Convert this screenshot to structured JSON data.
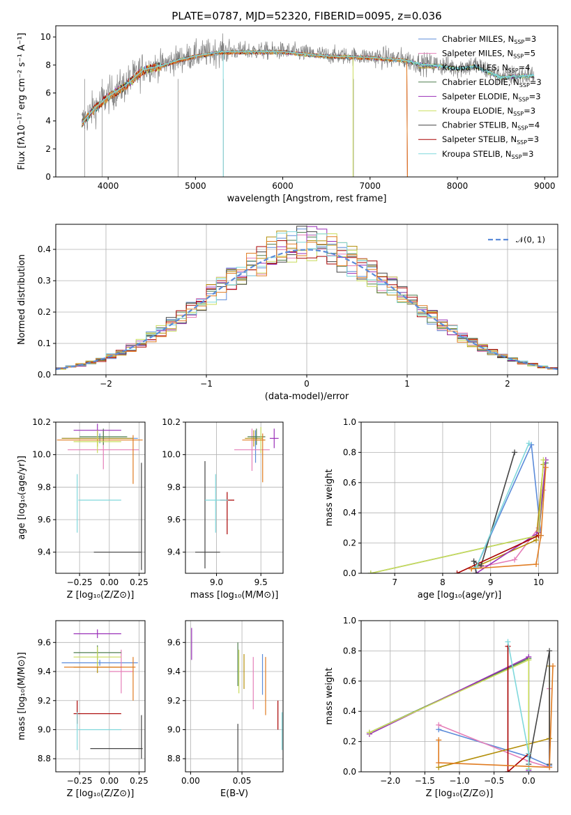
{
  "colors": {
    "Chabrier MILES": "#5b8bd9",
    "Salpeter MILES": "#e57fb8",
    "Kroupa MILES": "#b38f0a",
    "Chabrier ELODIE": "#4f7f4f",
    "Salpeter ELODIE": "#9a2fb8",
    "Kroupa ELODIE": "#c8dc5a",
    "Chabrier STELIB": "#444444",
    "Salpeter STELIB": "#a80000",
    "Kroupa STELIB": "#7fd8dc",
    "extra_orange": "#e07b20",
    "gray_data": "#808080",
    "normal_curve": "#5b8bd9"
  },
  "chart_data": [
    {
      "id": "spectrum",
      "type": "line",
      "title": "PLATE=0787, MJD=52320, FIBERID=0095, z=0.036",
      "xlabel": "wavelength [Angstrom, rest frame]",
      "ylabel": "Flux [fλ10⁻¹⁷ erg cm⁻² s⁻¹ A⁻¹]",
      "xlim": [
        3400,
        9150
      ],
      "ylim": [
        0,
        10.8
      ],
      "xticks": [
        "4000",
        "5000",
        "6000",
        "7000",
        "8000",
        "9000"
      ],
      "yticks": [
        "0",
        "2",
        "4",
        "6",
        "8",
        "10"
      ],
      "grid": false,
      "legend_position": "top-right",
      "legend": [
        {
          "name": "Chabrier MILES",
          "sub": "SSP",
          "count": "=3"
        },
        {
          "name": "Salpeter MILES",
          "sub": "SSP",
          "count": "=5"
        },
        {
          "name": "Kroupa MILES",
          "sub": "SSP",
          "count": "=4"
        },
        {
          "name": "Chabrier ELODIE",
          "sub": "SSP",
          "count": "=3"
        },
        {
          "name": "Salpeter ELODIE",
          "sub": "SSP",
          "count": "=3"
        },
        {
          "name": "Kroupa ELODIE",
          "sub": "SSP",
          "count": "=3"
        },
        {
          "name": "Chabrier STELIB",
          "sub": "SSP",
          "count": "=4"
        },
        {
          "name": "Salpeter STELIB",
          "sub": "SSP",
          "count": "=3"
        },
        {
          "name": "Kroupa STELIB",
          "sub": "SSP",
          "count": "=3"
        }
      ],
      "model_continuum": {
        "x": [
          3700,
          3850,
          4000,
          4200,
          4400,
          4600,
          4800,
          5000,
          5300,
          5600,
          6000,
          6500,
          7000,
          7400,
          7600,
          7800,
          8000,
          8200,
          8500,
          8800
        ],
        "y": [
          3.9,
          5.0,
          5.8,
          6.6,
          7.7,
          8.0,
          8.4,
          8.7,
          9.0,
          9.0,
          9.0,
          8.7,
          8.6,
          8.4,
          8.1,
          8.0,
          7.8,
          8.0,
          7.2,
          7.3
        ]
      }
    },
    {
      "id": "residuals",
      "type": "histogram",
      "xlabel": "(data-model)/error",
      "ylabel": "Normed distribution",
      "xlim": [
        -2.5,
        2.5
      ],
      "ylim": [
        0,
        0.48
      ],
      "xticks": [
        "−2",
        "−1",
        "0",
        "1",
        "2"
      ],
      "yticks": [
        "0.0",
        "0.1",
        "0.2",
        "0.3",
        "0.4"
      ],
      "grid": true,
      "legend_position": "top-right",
      "legend_label": "𝒩(0, 1)",
      "normal_curve": {
        "mean": 0,
        "sigma": 1
      }
    },
    {
      "id": "age_vs_Z",
      "type": "errorbar",
      "xlabel": "Z [log₁₀(Z/Z⊙)]",
      "ylabel": "age  [log₁₀(age/yr)]",
      "xlim": [
        -0.45,
        0.3
      ],
      "ylim": [
        9.27,
        10.2
      ],
      "xticks": [
        "−0.25",
        "0.00",
        "0.25"
      ],
      "yticks": [
        "9.4",
        "9.6",
        "9.8",
        "10.0",
        "10.2"
      ],
      "grid": true,
      "points": [
        {
          "model": "Chabrier MILES",
          "x": -0.08,
          "xerr": 0.32,
          "y": 10.1,
          "yerr": 0.03
        },
        {
          "model": "Salpeter MILES",
          "x": -0.05,
          "xerr": 0.3,
          "y": 10.03,
          "yerr": 0.12
        },
        {
          "model": "Kroupa MILES",
          "x": -0.1,
          "xerr": 0.3,
          "y": 10.1,
          "yerr": 0.05
        },
        {
          "model": "Chabrier ELODIE",
          "x": -0.05,
          "xerr": 0.2,
          "y": 10.11,
          "yerr": 0.05
        },
        {
          "model": "Salpeter ELODIE",
          "x": -0.1,
          "xerr": 0.2,
          "y": 10.15,
          "yerr": 0.04
        },
        {
          "model": "Kroupa ELODIE",
          "x": -0.1,
          "xerr": 0.2,
          "y": 10.08,
          "yerr": 0.07
        },
        {
          "model": "Chabrier STELIB",
          "x": 0.07,
          "xerr": 0.2,
          "y": 9.4,
          "yerr": 0.0
        },
        {
          "model": "Chabrier STELIB",
          "x": 0.27,
          "xerr": 0.0,
          "y": 9.62,
          "yerr": 0.33
        },
        {
          "model": "Kroupa STELIB",
          "x": -0.27,
          "xerr": 0.0,
          "y": 9.7,
          "yerr": 0.18
        },
        {
          "model": "Kroupa STELIB",
          "x": -0.08,
          "xerr": 0.18,
          "y": 9.72,
          "yerr": 0.0
        },
        {
          "model": "extra_orange",
          "x": -0.08,
          "xerr": 0.36,
          "y": 10.09,
          "yerr": 0.0
        },
        {
          "model": "extra_orange",
          "x": 0.2,
          "xerr": 0.0,
          "y": 9.97,
          "yerr": 0.15
        }
      ]
    },
    {
      "id": "age_vs_mass",
      "type": "errorbar",
      "xlabel": "mass [log₁₀(M/M⊙)]",
      "ylabel": "",
      "xlim": [
        8.65,
        9.75
      ],
      "ylim": [
        9.27,
        10.2
      ],
      "xticks": [
        "9.0",
        "9.5"
      ],
      "yticks": [
        "9.4",
        "9.6",
        "9.8",
        "10.0",
        "10.2"
      ],
      "grid": true,
      "points": [
        {
          "model": "Chabrier MILES",
          "x": 9.44,
          "xerr": 0.0,
          "y": 10.05,
          "yerr": 0.1
        },
        {
          "model": "Salpeter MILES",
          "x": 9.4,
          "xerr": 0.2,
          "y": 10.03,
          "yerr": 0.13
        },
        {
          "model": "Kroupa MILES",
          "x": 9.42,
          "xerr": 0.1,
          "y": 10.1,
          "yerr": 0.05
        },
        {
          "model": "Chabrier ELODIE",
          "x": 9.45,
          "xerr": 0.1,
          "y": 10.11,
          "yerr": 0.05
        },
        {
          "model": "Salpeter ELODIE",
          "x": 9.65,
          "xerr": 0.05,
          "y": 10.1,
          "yerr": 0.06
        },
        {
          "model": "Kroupa ELODIE",
          "x": 9.5,
          "xerr": 0.05,
          "y": 10.09,
          "yerr": 0.08
        },
        {
          "model": "Chabrier STELIB",
          "x": 8.9,
          "xerr": 0.14,
          "y": 9.4,
          "yerr": 0.0
        },
        {
          "model": "Chabrier STELIB",
          "x": 8.87,
          "xerr": 0.0,
          "y": 9.63,
          "yerr": 0.33
        },
        {
          "model": "Salpeter STELIB",
          "x": 9.12,
          "xerr": 0.08,
          "y": 9.72,
          "yerr": 0.0
        },
        {
          "model": "Salpeter STELIB",
          "x": 9.12,
          "xerr": 0.0,
          "y": 9.64,
          "yerr": 0.13
        },
        {
          "model": "Kroupa STELIB",
          "x": 8.99,
          "xerr": 0.0,
          "y": 9.7,
          "yerr": 0.18
        },
        {
          "model": "Kroupa STELIB",
          "x": 9.0,
          "xerr": 0.13,
          "y": 9.72,
          "yerr": 0.0
        },
        {
          "model": "extra_orange",
          "x": 9.42,
          "xerr": 0.13,
          "y": 10.09,
          "yerr": 0.0
        },
        {
          "model": "extra_orange",
          "x": 9.52,
          "xerr": 0.0,
          "y": 9.98,
          "yerr": 0.15
        }
      ]
    },
    {
      "id": "massweight_vs_age",
      "type": "line",
      "xlabel": "age  [log₁₀(age/yr)]",
      "ylabel": "mass weight",
      "xlim": [
        6.3,
        10.4
      ],
      "ylim": [
        0,
        1
      ],
      "xticks": [
        "7",
        "8",
        "9",
        "10"
      ],
      "yticks": [
        "0.0",
        "0.2",
        "0.4",
        "0.6",
        "0.8",
        "1.0"
      ],
      "grid": true,
      "series": [
        {
          "model": "Chabrier MILES",
          "points": [
            [
              10.05,
              0.25
            ],
            [
              9.85,
              0.85
            ],
            [
              8.7,
              0.04
            ]
          ]
        },
        {
          "model": "Salpeter MILES",
          "points": [
            [
              10.1,
              0.55
            ],
            [
              10.0,
              0.3
            ],
            [
              9.5,
              0.09
            ],
            [
              8.6,
              0.03
            ]
          ]
        },
        {
          "model": "Kroupa MILES",
          "points": [
            [
              10.1,
              0.72
            ],
            [
              9.95,
              0.22
            ],
            [
              8.6,
              0.03
            ]
          ]
        },
        {
          "model": "Chabrier ELODIE",
          "points": [
            [
              10.15,
              0.73
            ],
            [
              10.0,
              0.25
            ],
            [
              6.5,
              0.0
            ]
          ]
        },
        {
          "model": "Salpeter ELODIE",
          "points": [
            [
              10.15,
              0.75
            ],
            [
              10.0,
              0.27
            ],
            [
              8.7,
              0.0
            ]
          ]
        },
        {
          "model": "Kroupa ELODIE",
          "points": [
            [
              10.1,
              0.75
            ],
            [
              10.0,
              0.25
            ],
            [
              6.5,
              0.0
            ]
          ]
        },
        {
          "model": "Chabrier STELIB",
          "points": [
            [
              9.5,
              0.8
            ],
            [
              8.8,
              0.05
            ],
            [
              8.65,
              0.08
            ],
            [
              8.7,
              0.0
            ]
          ]
        },
        {
          "model": "Salpeter STELIB",
          "points": [
            [
              10.0,
              0.25
            ],
            [
              8.3,
              0.0
            ]
          ]
        },
        {
          "model": "Kroupa STELIB",
          "points": [
            [
              9.8,
              0.86
            ],
            [
              8.7,
              0.04
            ]
          ]
        },
        {
          "model": "extra_orange",
          "points": [
            [
              10.15,
              0.7
            ],
            [
              10.05,
              0.25
            ],
            [
              9.95,
              0.06
            ],
            [
              8.6,
              0.03
            ]
          ]
        }
      ]
    },
    {
      "id": "mass_vs_Z",
      "type": "errorbar",
      "xlabel": "Z [log₁₀(Z/Z⊙)]",
      "ylabel": "mass [log₁₀(M/M⊙)]",
      "xlim": [
        -0.45,
        0.3
      ],
      "ylim": [
        8.71,
        9.75
      ],
      "xticks": [
        "−0.25",
        "0.00",
        "0.25"
      ],
      "yticks": [
        "8.8",
        "9.0",
        "9.2",
        "9.4",
        "9.6"
      ],
      "grid": true,
      "points": [
        {
          "model": "Chabrier MILES",
          "x": -0.08,
          "xerr": 0.32,
          "y": 9.46,
          "yerr": 0.02
        },
        {
          "model": "Salpeter MILES",
          "x": 0.1,
          "xerr": 0.1,
          "y": 9.4,
          "yerr": 0.15
        },
        {
          "model": "Kroupa MILES",
          "x": -0.1,
          "xerr": 0.2,
          "y": 9.43,
          "yerr": 0.04
        },
        {
          "model": "Chabrier ELODIE",
          "x": -0.1,
          "xerr": 0.2,
          "y": 9.53,
          "yerr": 0.05
        },
        {
          "model": "Salpeter ELODIE",
          "x": -0.1,
          "xerr": 0.2,
          "y": 9.66,
          "yerr": 0.03
        },
        {
          "model": "Kroupa ELODIE",
          "x": -0.1,
          "xerr": 0.2,
          "y": 9.5,
          "yerr": 0.07
        },
        {
          "model": "Chabrier STELIB",
          "x": 0.06,
          "xerr": 0.22,
          "y": 8.87,
          "yerr": 0.0
        },
        {
          "model": "Chabrier STELIB",
          "x": 0.27,
          "xerr": 0.0,
          "y": 8.95,
          "yerr": 0.15
        },
        {
          "model": "Salpeter STELIB",
          "x": -0.1,
          "xerr": 0.2,
          "y": 9.11,
          "yerr": 0.0
        },
        {
          "model": "Salpeter STELIB",
          "x": -0.27,
          "xerr": 0.0,
          "y": 9.12,
          "yerr": 0.08
        },
        {
          "model": "Kroupa STELIB",
          "x": -0.08,
          "xerr": 0.18,
          "y": 9.0,
          "yerr": 0.0
        },
        {
          "model": "Kroupa STELIB",
          "x": -0.27,
          "xerr": 0.0,
          "y": 8.99,
          "yerr": 0.13
        },
        {
          "model": "extra_orange",
          "x": -0.08,
          "xerr": 0.3,
          "y": 9.43,
          "yerr": 0.0
        },
        {
          "model": "extra_orange",
          "x": 0.2,
          "xerr": 0.0,
          "y": 9.35,
          "yerr": 0.15
        }
      ]
    },
    {
      "id": "mass_vs_EBV",
      "type": "errorbar",
      "xlabel": "E(B-V)",
      "ylabel": "",
      "xlim": [
        -0.005,
        0.09
      ],
      "ylim": [
        8.71,
        9.75
      ],
      "xticks": [
        "0.00",
        "0.05"
      ],
      "yticks": [
        "8.8",
        "9.0",
        "9.2",
        "9.4",
        "9.6"
      ],
      "grid": true,
      "points": [
        {
          "model": "Chabrier MILES",
          "x": 0.07,
          "xerr": 0.0,
          "y": 9.38,
          "yerr": 0.14
        },
        {
          "model": "Salpeter MILES",
          "x": 0.061,
          "xerr": 0.0,
          "y": 9.32,
          "yerr": 0.18
        },
        {
          "model": "Kroupa MILES",
          "x": 0.052,
          "xerr": 0.0,
          "y": 9.4,
          "yerr": 0.12
        },
        {
          "model": "Chabrier ELODIE",
          "x": 0.046,
          "xerr": 0.0,
          "y": 9.45,
          "yerr": 0.15
        },
        {
          "model": "Salpeter ELODIE",
          "x": 0.001,
          "xerr": 0.0,
          "y": 9.59,
          "yerr": 0.11
        },
        {
          "model": "Kroupa ELODIE",
          "x": 0.047,
          "xerr": 0.0,
          "y": 9.4,
          "yerr": 0.15
        },
        {
          "model": "Chabrier STELIB",
          "x": 0.046,
          "xerr": 0.0,
          "y": 8.87,
          "yerr": 0.17
        },
        {
          "model": "Salpeter STELIB",
          "x": 0.085,
          "xerr": 0.0,
          "y": 9.1,
          "yerr": 0.1
        },
        {
          "model": "Kroupa STELIB",
          "x": 0.089,
          "xerr": 0.0,
          "y": 8.99,
          "yerr": 0.13
        },
        {
          "model": "extra_orange",
          "x": 0.073,
          "xerr": 0.0,
          "y": 9.3,
          "yerr": 0.2
        }
      ]
    },
    {
      "id": "massweight_vs_Z",
      "type": "line",
      "xlabel": "Z [log₁₀(Z/Z⊙)]",
      "ylabel": "mass weight",
      "xlim": [
        -2.42,
        0.42
      ],
      "ylim": [
        0,
        1
      ],
      "xticks": [
        "−2.0",
        "−1.5",
        "−1.0",
        "−0.5",
        "0.0"
      ],
      "yticks": [
        "0.0",
        "0.2",
        "0.4",
        "0.6",
        "0.8",
        "1.0"
      ],
      "grid": true,
      "series": [
        {
          "model": "Chabrier MILES",
          "points": [
            [
              -1.3,
              0.28
            ],
            [
              0.0,
              0.1
            ],
            [
              0.3,
              0.04
            ]
          ]
        },
        {
          "model": "Salpeter MILES",
          "points": [
            [
              -1.3,
              0.31
            ],
            [
              0.0,
              0.07
            ],
            [
              0.3,
              0.03
            ],
            [
              0.3,
              0.55
            ]
          ]
        },
        {
          "model": "Kroupa MILES",
          "points": [
            [
              0.3,
              0.7
            ],
            [
              0.3,
              0.22
            ],
            [
              -1.3,
              0.03
            ]
          ]
        },
        {
          "model": "Chabrier ELODIE",
          "points": [
            [
              -2.3,
              0.26
            ],
            [
              0.0,
              0.75
            ],
            [
              0.0,
              0.02
            ]
          ]
        },
        {
          "model": "Salpeter ELODIE",
          "points": [
            [
              -2.3,
              0.25
            ],
            [
              0.0,
              0.76
            ],
            [
              0.0,
              0.01
            ]
          ]
        },
        {
          "model": "Kroupa ELODIE",
          "points": [
            [
              -2.3,
              0.26
            ],
            [
              0.0,
              0.74
            ],
            [
              0.0,
              0.02
            ]
          ]
        },
        {
          "model": "Chabrier STELIB",
          "points": [
            [
              0.3,
              0.05
            ],
            [
              0.3,
              0.8
            ],
            [
              0.0,
              0.05
            ]
          ]
        },
        {
          "model": "Salpeter STELIB",
          "points": [
            [
              -0.3,
              0.0
            ],
            [
              -0.3,
              0.83
            ],
            [
              -0.3,
              0.0
            ],
            [
              0.0,
              0.12
            ]
          ]
        },
        {
          "model": "Kroupa STELIB",
          "points": [
            [
              -0.3,
              0.86
            ],
            [
              0.0,
              0.12
            ],
            [
              0.0,
              0.0
            ]
          ]
        },
        {
          "model": "extra_orange",
          "points": [
            [
              -1.3,
              0.21
            ],
            [
              -1.3,
              0.06
            ],
            [
              0.3,
              0.03
            ],
            [
              0.35,
              0.7
            ]
          ]
        }
      ]
    }
  ]
}
